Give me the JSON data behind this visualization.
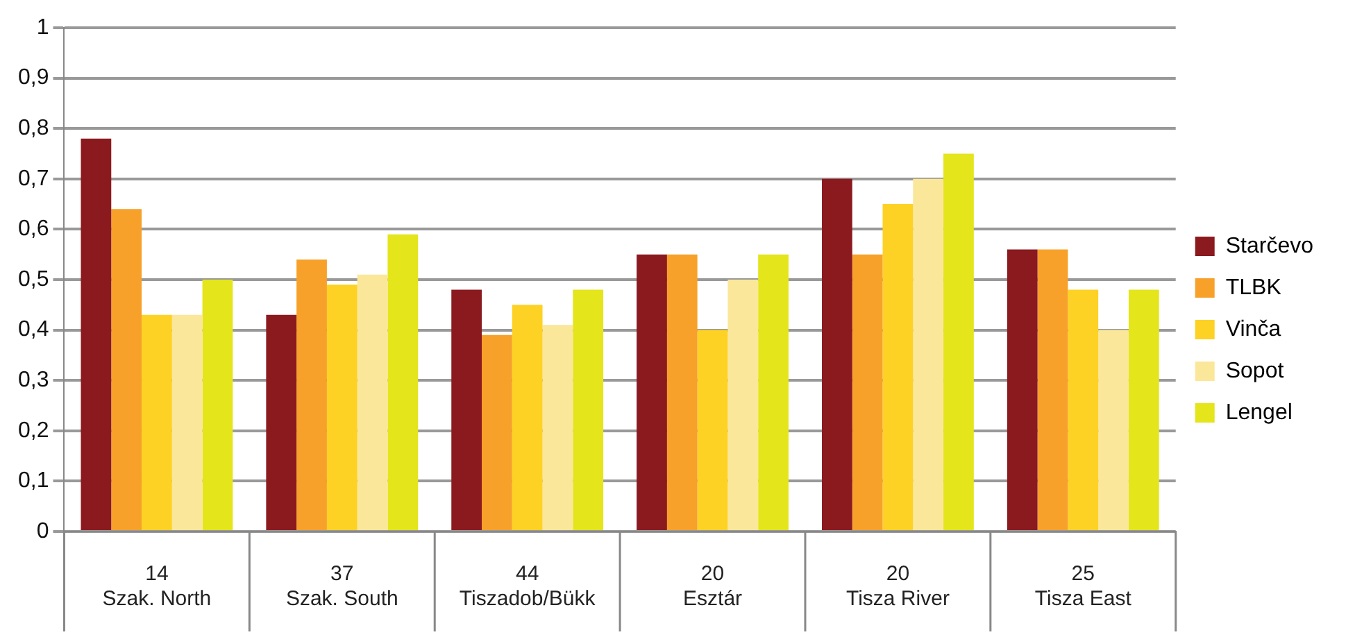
{
  "chart_data": {
    "type": "bar",
    "categories": [
      "14\nSzak. North",
      "37\nSzak. South",
      "44\nTiszadob/Bükk",
      "20\nEsztár",
      "20\nTisza River",
      "25\nTisza East"
    ],
    "series": [
      {
        "name": "Starčevo",
        "color": "#8b1a1f",
        "values": [
          0.78,
          0.43,
          0.48,
          0.55,
          0.7,
          0.56
        ]
      },
      {
        "name": "TLBK",
        "color": "#f7a12a",
        "values": [
          0.64,
          0.54,
          0.39,
          0.55,
          0.55,
          0.56
        ]
      },
      {
        "name": "Vinča",
        "color": "#fdd224",
        "values": [
          0.43,
          0.49,
          0.45,
          0.4,
          0.65,
          0.48
        ]
      },
      {
        "name": "Sopot",
        "color": "#fbe79a",
        "values": [
          0.43,
          0.51,
          0.41,
          0.5,
          0.7,
          0.4
        ]
      },
      {
        "name": "Lengel",
        "color": "#e4e51b",
        "values": [
          0.5,
          0.59,
          0.48,
          0.55,
          0.75,
          0.48
        ]
      }
    ],
    "ylim": [
      0,
      1
    ],
    "yticks": [
      0,
      {
        "value": 0.1,
        "label": "0,1"
      },
      {
        "value": 0.2,
        "label": "0,2"
      },
      {
        "value": 0.3,
        "label": "0,3"
      },
      {
        "value": 0.4,
        "label": "0,4"
      },
      {
        "value": 0.5,
        "label": "0,5"
      },
      {
        "value": 0.6,
        "label": "0,6"
      },
      {
        "value": 0.7,
        "label": "0,7"
      },
      {
        "value": 0.8,
        "label": "0,8"
      },
      {
        "value": 0.9,
        "label": "0,9"
      },
      1
    ],
    "grid": "y",
    "legend": "right"
  }
}
